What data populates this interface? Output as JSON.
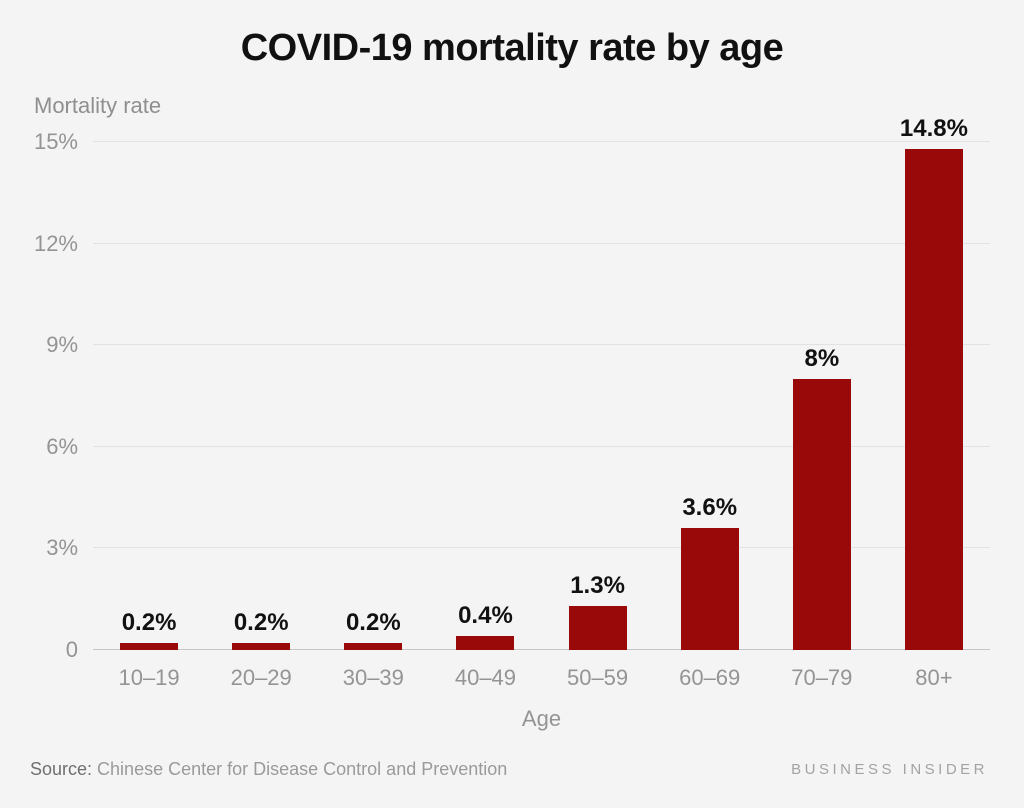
{
  "title": "COVID-19 mortality rate by age",
  "chart_data": {
    "type": "bar",
    "title": "COVID-19 mortality rate by age",
    "categories": [
      "10–19",
      "20–29",
      "30–39",
      "40–49",
      "50–59",
      "60–69",
      "70–79",
      "80+"
    ],
    "values": [
      0.2,
      0.2,
      0.2,
      0.4,
      1.3,
      3.6,
      8,
      14.8
    ],
    "value_labels": [
      "0.2%",
      "0.2%",
      "0.2%",
      "0.4%",
      "1.3%",
      "3.6%",
      "8%",
      "14.8%"
    ],
    "xlabel": "Age",
    "ylabel": "Mortality rate",
    "ylim": [
      0,
      15
    ],
    "yticks": [
      0,
      3,
      6,
      9,
      12,
      15
    ],
    "ytick_labels": [
      "0",
      "3%",
      "6%",
      "9%",
      "12%",
      "15%"
    ],
    "bar_color": "#990909",
    "grid": true,
    "legend": false
  },
  "footer": {
    "source_prefix": "Source:",
    "source_text": " Chinese Center for Disease Control and Prevention",
    "brand": "BUSINESS INSIDER"
  }
}
